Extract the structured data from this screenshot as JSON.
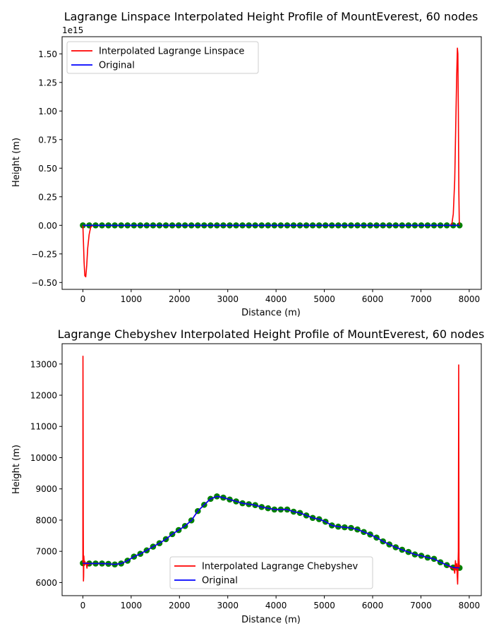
{
  "chart_data": [
    {
      "type": "line",
      "title": "Lagrange Linspace Interpolated Height Profile of MountEverest, 60 nodes",
      "xlabel": "Distance (m)",
      "ylabel": "Height (m)",
      "offset_label": "1e15",
      "xlim": [
        -430,
        8250
      ],
      "ylim": [
        -0.56,
        1.65
      ],
      "xticks": [
        0,
        1000,
        2000,
        3000,
        4000,
        5000,
        6000,
        7000,
        8000
      ],
      "xtick_labels": [
        "0",
        "1000",
        "2000",
        "3000",
        "4000",
        "5000",
        "6000",
        "7000",
        "8000"
      ],
      "yticks": [
        -0.5,
        -0.25,
        0,
        0.25,
        0.5,
        0.75,
        1.0,
        1.25,
        1.5
      ],
      "ytick_labels": [
        "−0.50",
        "−0.25",
        "0.00",
        "0.25",
        "0.50",
        "0.75",
        "1.00",
        "1.25",
        "1.50"
      ],
      "grid": false,
      "legend_position": "top-left",
      "series": [
        {
          "name": "Interpolated Lagrange Linspace",
          "color": "#ff0000",
          "x": [
            0,
            10,
            25,
            40,
            60,
            80,
            100,
            130,
            160,
            200,
            300,
            7500,
            7600,
            7640,
            7670,
            7700,
            7720,
            7740,
            7755,
            7765,
            7775,
            7785,
            7795
          ],
          "y": [
            0,
            -0.12,
            -0.32,
            -0.44,
            -0.45,
            -0.35,
            -0.2,
            -0.08,
            -0.02,
            0,
            0,
            0,
            0,
            0.01,
            0.1,
            0.4,
            0.85,
            1.3,
            1.55,
            1.5,
            1.0,
            0.3,
            0
          ]
        },
        {
          "name": "Original",
          "color": "#0000ff",
          "x": [
            0,
            7800
          ],
          "y": [
            0,
            0
          ]
        }
      ],
      "markers": {
        "color": "#008000",
        "x": [
          0,
          132,
          264,
          396,
          529,
          661,
          793,
          925,
          1058,
          1190,
          1322,
          1454,
          1586,
          1719,
          1851,
          1983,
          2115,
          2247,
          2380,
          2512,
          2644,
          2776,
          2908,
          3041,
          3173,
          3305,
          3437,
          3569,
          3702,
          3834,
          3966,
          4098,
          4231,
          4363,
          4495,
          4627,
          4759,
          4892,
          5024,
          5156,
          5288,
          5420,
          5553,
          5685,
          5817,
          5949,
          6081,
          6214,
          6346,
          6478,
          6610,
          6742,
          6875,
          7007,
          7139,
          7271,
          7403,
          7536,
          7668,
          7800
        ],
        "y": [
          0,
          0,
          0,
          0,
          0,
          0,
          0,
          0,
          0,
          0,
          0,
          0,
          0,
          0,
          0,
          0,
          0,
          0,
          0,
          0,
          0,
          0,
          0,
          0,
          0,
          0,
          0,
          0,
          0,
          0,
          0,
          0,
          0,
          0,
          0,
          0,
          0,
          0,
          0,
          0,
          0,
          0,
          0,
          0,
          0,
          0,
          0,
          0,
          0,
          0,
          0,
          0,
          0,
          0,
          0,
          0,
          0,
          0,
          0,
          0
        ]
      }
    },
    {
      "type": "line",
      "title": "Lagrange Chebyshev Interpolated Height Profile of MountEverest, 60 nodes",
      "xlabel": "Distance (m)",
      "ylabel": "Height (m)",
      "xlim": [
        -430,
        8250
      ],
      "ylim": [
        5580,
        13650
      ],
      "xticks": [
        0,
        1000,
        2000,
        3000,
        4000,
        5000,
        6000,
        7000,
        8000
      ],
      "xtick_labels": [
        "0",
        "1000",
        "2000",
        "3000",
        "4000",
        "5000",
        "6000",
        "7000",
        "8000"
      ],
      "yticks": [
        6000,
        7000,
        8000,
        9000,
        10000,
        11000,
        12000,
        13000
      ],
      "ytick_labels": [
        "6000",
        "7000",
        "8000",
        "9000",
        "10000",
        "11000",
        "12000",
        "13000"
      ],
      "grid": false,
      "legend_position": "lower-center",
      "series": [
        {
          "name": "Interpolated Lagrange Chebyshev",
          "color": "#ff0000",
          "x": [
            0,
            2,
            5,
            8,
            12,
            16,
            20,
            25,
            30,
            40,
            55,
            70,
            85,
            100,
            115,
            130,
            150,
            200,
            264,
            400,
            529,
            661,
            793,
            925,
            1058,
            1190,
            1322,
            1454,
            1586,
            1719,
            1851,
            1983,
            2115,
            2247,
            2380,
            2512,
            2644,
            2776,
            2908,
            3041,
            3173,
            3305,
            3437,
            3569,
            3702,
            3834,
            3966,
            4098,
            4231,
            4363,
            4495,
            4627,
            4759,
            4892,
            5024,
            5156,
            5288,
            5420,
            5553,
            5685,
            5817,
            5949,
            6081,
            6214,
            6346,
            6478,
            6610,
            6742,
            6875,
            7007,
            7139,
            7271,
            7403,
            7536,
            7620,
            7680,
            7700,
            7715,
            7730,
            7742,
            7752,
            7760,
            7768,
            7775,
            7782,
            7788,
            7794,
            7800
          ],
          "y": [
            6630,
            13250,
            11000,
            8000,
            6050,
            6200,
            6850,
            6700,
            6550,
            6680,
            6600,
            6620,
            6460,
            6650,
            6580,
            6620,
            6600,
            6610,
            6610,
            6610,
            6600,
            6580,
            6610,
            6700,
            6830,
            6920,
            7030,
            7150,
            7260,
            7390,
            7550,
            7680,
            7810,
            7990,
            8290,
            8490,
            8680,
            8760,
            8720,
            8660,
            8600,
            8540,
            8510,
            8480,
            8420,
            8380,
            8340,
            8340,
            8340,
            8270,
            8230,
            8150,
            8070,
            8030,
            7950,
            7830,
            7790,
            7770,
            7750,
            7700,
            7620,
            7540,
            7440,
            7320,
            7220,
            7130,
            7050,
            6980,
            6900,
            6860,
            6800,
            6760,
            6650,
            6560,
            6480,
            6450,
            6300,
            6700,
            6400,
            6600,
            6200,
            5950,
            6500,
            7000,
            12970,
            6800,
            6500,
            6480
          ]
        },
        {
          "name": "Original",
          "color": "#0000ff",
          "x": [
            0,
            132,
            264,
            396,
            529,
            661,
            793,
            925,
            1058,
            1190,
            1322,
            1454,
            1586,
            1719,
            1851,
            1983,
            2115,
            2247,
            2380,
            2512,
            2644,
            2776,
            2908,
            3041,
            3173,
            3305,
            3437,
            3569,
            3702,
            3834,
            3966,
            4098,
            4231,
            4363,
            4495,
            4627,
            4759,
            4892,
            5024,
            5156,
            5288,
            5420,
            5553,
            5685,
            5817,
            5949,
            6081,
            6214,
            6346,
            6478,
            6610,
            6742,
            6875,
            7007,
            7139,
            7271,
            7403,
            7536,
            7668,
            7800
          ],
          "y": [
            6620,
            6610,
            6610,
            6610,
            6600,
            6580,
            6610,
            6700,
            6830,
            6920,
            7030,
            7150,
            7260,
            7390,
            7550,
            7680,
            7810,
            7990,
            8290,
            8490,
            8680,
            8760,
            8720,
            8660,
            8600,
            8540,
            8510,
            8480,
            8420,
            8380,
            8340,
            8340,
            8340,
            8270,
            8230,
            8150,
            8070,
            8030,
            7950,
            7830,
            7790,
            7770,
            7750,
            7700,
            7620,
            7540,
            7440,
            7320,
            7220,
            7130,
            7050,
            6980,
            6900,
            6860,
            6800,
            6760,
            6650,
            6560,
            6480,
            6470
          ]
        }
      ],
      "markers": {
        "color": "#008000",
        "x": [
          0,
          132,
          264,
          396,
          529,
          661,
          793,
          925,
          1058,
          1190,
          1322,
          1454,
          1586,
          1719,
          1851,
          1983,
          2115,
          2247,
          2380,
          2512,
          2644,
          2776,
          2908,
          3041,
          3173,
          3305,
          3437,
          3569,
          3702,
          3834,
          3966,
          4098,
          4231,
          4363,
          4495,
          4627,
          4759,
          4892,
          5024,
          5156,
          5288,
          5420,
          5553,
          5685,
          5817,
          5949,
          6081,
          6214,
          6346,
          6478,
          6610,
          6742,
          6875,
          7007,
          7139,
          7271,
          7403,
          7536,
          7668,
          7800
        ],
        "y": [
          6620,
          6610,
          6610,
          6610,
          6600,
          6580,
          6610,
          6700,
          6830,
          6920,
          7030,
          7150,
          7260,
          7390,
          7550,
          7680,
          7810,
          7990,
          8290,
          8490,
          8680,
          8760,
          8720,
          8660,
          8600,
          8540,
          8510,
          8480,
          8420,
          8380,
          8340,
          8340,
          8340,
          8270,
          8230,
          8150,
          8070,
          8030,
          7950,
          7830,
          7790,
          7770,
          7750,
          7700,
          7620,
          7540,
          7440,
          7320,
          7220,
          7130,
          7050,
          6980,
          6900,
          6860,
          6800,
          6760,
          6650,
          6560,
          6480,
          6470
        ]
      }
    }
  ]
}
